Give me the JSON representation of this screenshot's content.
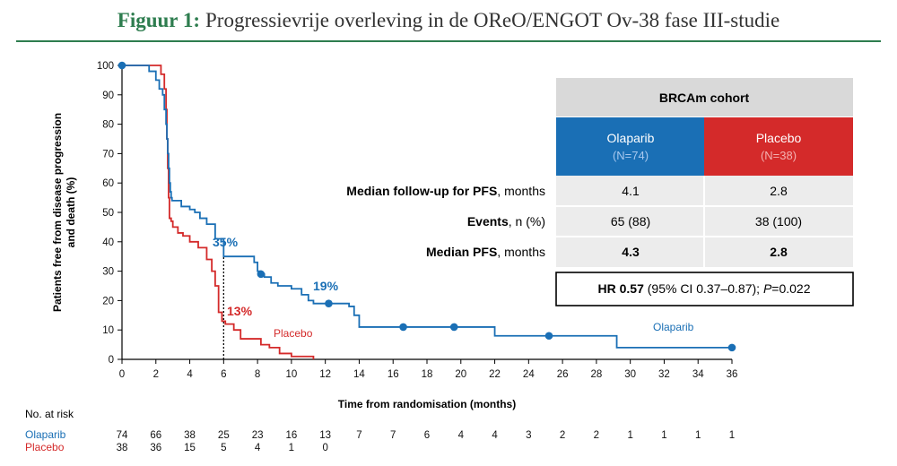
{
  "header": {
    "figure_label": "Figuur 1:",
    "title": "Progressievrije overleving in de OReO/ENGOT Ov-38 fase III-studie"
  },
  "colors": {
    "olaparib": "#1a6fb5",
    "placebo": "#d42a2a",
    "header_green": "#2e7d4f"
  },
  "chart_data": {
    "type": "line",
    "title": "Progressievrije overleving in de OReO/ENGOT Ov-38 fase III-studie",
    "xlabel": "Time from randomisation (months)",
    "ylabel": "Patients free from disease progression and death (%)",
    "xlim": [
      0,
      36
    ],
    "ylim": [
      0,
      100
    ],
    "xticks": [
      "0",
      "2",
      "4",
      "6",
      "8",
      "10",
      "12",
      "14",
      "16",
      "18",
      "20",
      "22",
      "24",
      "26",
      "28",
      "30",
      "32",
      "34",
      "36"
    ],
    "yticks": [
      "0",
      "10",
      "20",
      "30",
      "40",
      "50",
      "60",
      "70",
      "80",
      "90",
      "100"
    ],
    "series": [
      {
        "name": "Olaparib",
        "label": "Olaparib",
        "color": "#1a6fb5",
        "x": [
          0,
          0.6,
          1.6,
          2.0,
          2.2,
          2.4,
          2.5,
          2.6,
          2.65,
          2.7,
          2.75,
          2.8,
          2.85,
          2.9,
          2.95,
          3.0,
          3.5,
          4.0,
          4.3,
          4.6,
          5.0,
          5.5,
          6.0,
          7.5,
          7.8,
          8.0,
          8.2,
          8.4,
          8.8,
          9.2,
          10.0,
          10.6,
          11.0,
          11.3,
          12.2,
          13.4,
          13.7,
          14.0,
          16.6,
          19.6,
          22.0,
          25.2,
          29.2,
          36.0
        ],
        "y": [
          100,
          100,
          98,
          95,
          92,
          90,
          85,
          80,
          75,
          70,
          65,
          60,
          57,
          55,
          54,
          54,
          52,
          51,
          50,
          48,
          46,
          41,
          35,
          35,
          33,
          30,
          29,
          28,
          26,
          25,
          24,
          22,
          20,
          19,
          19,
          18,
          15,
          11,
          11,
          11,
          8,
          8,
          4,
          4
        ],
        "censored_x": [
          0,
          8.2,
          12.2,
          16.6,
          19.6,
          25.2,
          36.0
        ],
        "censored_y": [
          100,
          29,
          19,
          11,
          11,
          8,
          4
        ]
      },
      {
        "name": "Placebo",
        "label": "Placebo",
        "color": "#d42a2a",
        "x": [
          0,
          2.0,
          2.3,
          2.5,
          2.6,
          2.65,
          2.7,
          2.75,
          2.8,
          2.9,
          3.0,
          3.3,
          3.6,
          4.0,
          4.5,
          5.0,
          5.3,
          5.5,
          5.7,
          5.9,
          6.1,
          6.6,
          7.0,
          8.2,
          8.7,
          9.3,
          10.0,
          11.3
        ],
        "y": [
          100,
          100,
          97,
          92,
          85,
          75,
          65,
          55,
          48,
          47,
          45,
          43,
          42,
          40,
          38,
          34,
          30,
          25,
          16,
          13,
          12,
          10,
          7,
          5,
          4,
          2,
          1,
          0
        ]
      }
    ],
    "annotations": [
      {
        "text": "35%",
        "series": "Olaparib"
      },
      {
        "text": "19%",
        "series": "Olaparib"
      },
      {
        "text": "13%",
        "series": "Placebo"
      }
    ],
    "median_line_x": 6
  },
  "results_table": {
    "cohort": "BRCAm cohort",
    "olaparib_name": "Olaparib",
    "olaparib_n": "(N=74)",
    "placebo_name": "Placebo",
    "placebo_n": "(N=38)",
    "rows": [
      {
        "bold": "Median follow-up for PFS",
        "rest": ", months",
        "olaparib": "4.1",
        "placebo": "2.8"
      },
      {
        "bold": "Events",
        "rest": ", n (%)",
        "olaparib": "65 (88)",
        "placebo": "38 (100)"
      },
      {
        "bold": "Median PFS",
        "rest": ", months",
        "olaparib": "4.3",
        "placebo": "2.8"
      }
    ],
    "hr_bold": "HR 0.57",
    "hr_mid": " (95% CI 0.37–0.87); ",
    "hr_p": "P",
    "hr_end": "=0.022"
  },
  "risk_table": {
    "title": "No. at risk",
    "olaparib_label": "Olaparib",
    "placebo_label": "Placebo",
    "olaparib": [
      "74",
      "66",
      "38",
      "25",
      "23",
      "16",
      "13",
      "7",
      "7",
      "6",
      "4",
      "4",
      "3",
      "2",
      "2",
      "1",
      "1",
      "1",
      "1"
    ],
    "placebo": [
      "38",
      "36",
      "15",
      "5",
      "4",
      "1",
      "0"
    ]
  }
}
